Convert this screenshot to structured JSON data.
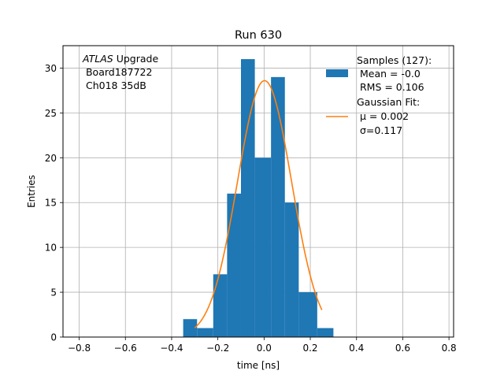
{
  "chart_data": {
    "type": "bar",
    "title": "Run 630",
    "xlabel": "time [ns]",
    "ylabel": "Entries",
    "xlim": [
      -0.87,
      0.82
    ],
    "ylim": [
      0,
      32.5
    ],
    "grid": true,
    "xticks": [
      -0.8,
      -0.6,
      -0.4,
      -0.2,
      0.0,
      0.2,
      0.4,
      0.6,
      0.8
    ],
    "xtick_labels": [
      "−0.8",
      "−0.6",
      "−0.4",
      "−0.2",
      "0.0",
      "0.2",
      "0.4",
      "0.6",
      "0.8"
    ],
    "yticks": [
      0,
      5,
      10,
      15,
      20,
      25,
      30
    ],
    "ytick_labels": [
      "0",
      "5",
      "10",
      "15",
      "20",
      "25",
      "30"
    ],
    "histogram": {
      "name": "Samples (127):",
      "color": "#1f77b4",
      "bins": [
        {
          "x0": -0.35,
          "x1": -0.29,
          "count": 2
        },
        {
          "x0": -0.29,
          "x1": -0.22,
          "count": 1
        },
        {
          "x0": -0.22,
          "x1": -0.16,
          "count": 7
        },
        {
          "x0": -0.16,
          "x1": -0.1,
          "count": 16
        },
        {
          "x0": -0.1,
          "x1": -0.04,
          "count": 31
        },
        {
          "x0": -0.04,
          "x1": 0.03,
          "count": 20
        },
        {
          "x0": 0.03,
          "x1": 0.09,
          "count": 29
        },
        {
          "x0": 0.09,
          "x1": 0.15,
          "count": 15
        },
        {
          "x0": 0.15,
          "x1": 0.23,
          "count": 5
        },
        {
          "x0": 0.23,
          "x1": 0.3,
          "count": 1
        }
      ]
    },
    "fit": {
      "name": "Gaussian Fit:",
      "color": "#ff7f0e",
      "mu": 0.002,
      "sigma": 0.117,
      "amplitude": 28.6,
      "x_range": [
        -0.3,
        0.25
      ]
    },
    "legend": {
      "placement": "top-right",
      "entries": [
        {
          "key": "histogram",
          "lines": [
            "Samples (127):",
            " Mean = -0.0",
            " RMS = 0.106"
          ]
        },
        {
          "key": "fit",
          "lines": [
            "Gaussian Fit:",
            " μ = 0.002",
            " σ=0.117"
          ]
        }
      ]
    },
    "annotation": {
      "italic": "ATLAS",
      "rest": " Upgrade",
      "lines": [
        " Board187722",
        " Ch018 35dB"
      ]
    }
  }
}
